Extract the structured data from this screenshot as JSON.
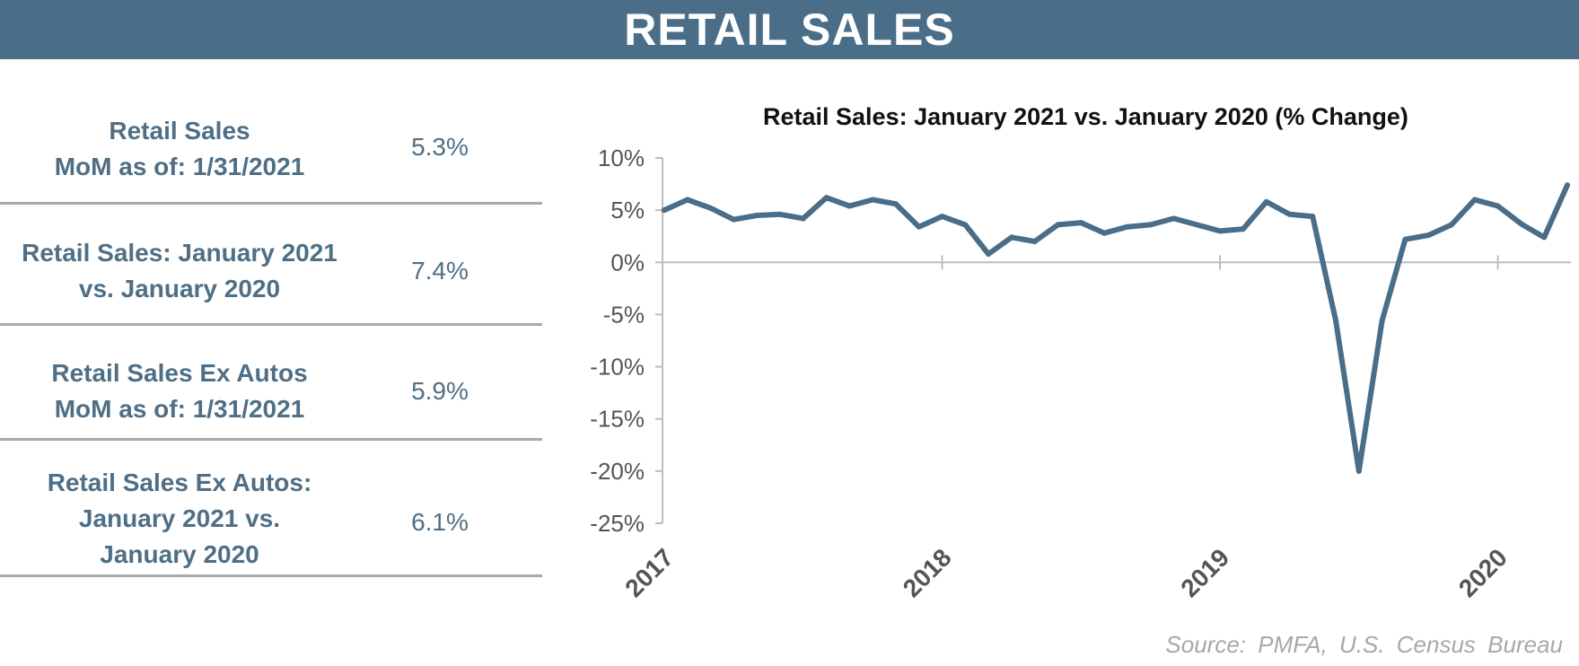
{
  "banner": {
    "title": "RETAIL SALES"
  },
  "stats": [
    {
      "label_lines": [
        "Retail Sales",
        "MoM as of: 1/31/2021"
      ],
      "value": "5.3%"
    },
    {
      "label_lines": [
        "Retail Sales: January 2021",
        "vs. January 2020"
      ],
      "value": "7.4%"
    },
    {
      "label_lines": [
        "Retail Sales Ex Autos",
        "MoM as of: 1/31/2021"
      ],
      "value": "5.9%"
    },
    {
      "label_lines": [
        "Retail Sales Ex Autos:",
        "January 2021 vs.",
        "January 2020"
      ],
      "value": "6.1%"
    }
  ],
  "chart_data": {
    "type": "line",
    "title": "Retail Sales: January 2021 vs. January 2020 (% Change)",
    "xlabel": "",
    "ylabel": "",
    "ylim": [
      -25,
      10
    ],
    "yticks": [
      "10%",
      "5%",
      "0%",
      "-5%",
      "-10%",
      "-15%",
      "-20%",
      "-25%"
    ],
    "xticks": [
      "2017",
      "2018",
      "2019",
      "2020"
    ],
    "grid": false,
    "line_color": "#4a6d88",
    "series": [
      {
        "values": [
          5.0,
          6.0,
          5.2,
          4.1,
          4.5,
          4.6,
          4.2,
          6.2,
          5.4,
          6.0,
          5.6,
          3.4,
          4.4,
          3.6,
          0.8,
          2.4,
          2.0,
          3.6,
          3.8,
          2.8,
          3.4,
          3.6,
          4.2,
          3.6,
          3.0,
          3.2,
          5.8,
          4.6,
          4.4,
          -5.6,
          -20.0,
          -5.6,
          2.2,
          2.6,
          3.6,
          6.0,
          5.4,
          3.7,
          2.4,
          7.4
        ]
      }
    ]
  },
  "source": "Source:  PMFA,  U.S. Census Bureau"
}
